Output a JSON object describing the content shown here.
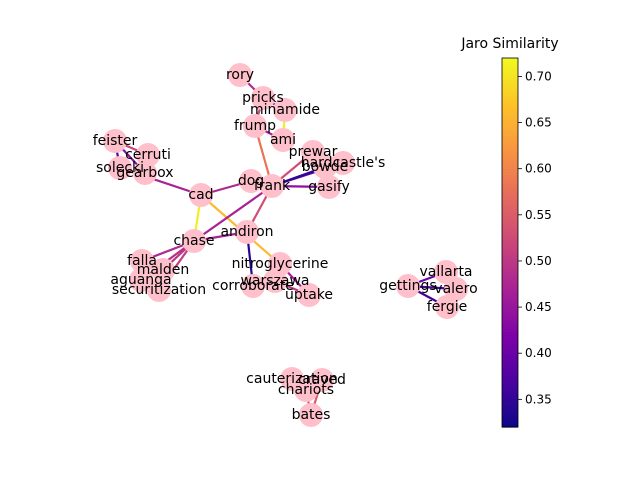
{
  "colorbar": {
    "title": "Jaro Similarity",
    "min": 0.32,
    "max": 0.72,
    "ticks": [
      0.35,
      0.4,
      0.45,
      0.5,
      0.55,
      0.6,
      0.65,
      0.7
    ],
    "tick_labels": [
      "0.35",
      "0.40",
      "0.45",
      "0.50",
      "0.55",
      "0.60",
      "0.65",
      "0.70"
    ],
    "colormap": "plasma"
  },
  "node_color": "#ffc0cb",
  "nodes": [
    {
      "id": "rory",
      "label": "rory"
    },
    {
      "id": "pricks",
      "label": "pricks"
    },
    {
      "id": "minamide",
      "label": "minamide"
    },
    {
      "id": "frump",
      "label": "frump"
    },
    {
      "id": "ami",
      "label": "ami"
    },
    {
      "id": "prewar",
      "label": "prewar"
    },
    {
      "id": "hardcastles",
      "label": "hardcastle's"
    },
    {
      "id": "bowde",
      "label": "bowde"
    },
    {
      "id": "gasify",
      "label": "gasify"
    },
    {
      "id": "dog",
      "label": "dog"
    },
    {
      "id": "frank",
      "label": "frank"
    },
    {
      "id": "feister",
      "label": "feister"
    },
    {
      "id": "cerruti",
      "label": "cerruti"
    },
    {
      "id": "solecki",
      "label": "solecki"
    },
    {
      "id": "gearbox",
      "label": "gearbox"
    },
    {
      "id": "cad",
      "label": "cad"
    },
    {
      "id": "andiron",
      "label": "andiron"
    },
    {
      "id": "chase",
      "label": "chase"
    },
    {
      "id": "falla",
      "label": "falla"
    },
    {
      "id": "malden",
      "label": "malden"
    },
    {
      "id": "aguanga",
      "label": "aguanga"
    },
    {
      "id": "securitization",
      "label": "securitization"
    },
    {
      "id": "nitroglycerine",
      "label": "nitroglycerine"
    },
    {
      "id": "warszawa",
      "label": "warszawa"
    },
    {
      "id": "corroborate",
      "label": "corroborate"
    },
    {
      "id": "uptake",
      "label": "uptake"
    },
    {
      "id": "gettings",
      "label": "gettings"
    },
    {
      "id": "vallarta",
      "label": "vallarta"
    },
    {
      "id": "valero",
      "label": "valero"
    },
    {
      "id": "fergie",
      "label": "fergie"
    },
    {
      "id": "cauterization",
      "label": "cauterization"
    },
    {
      "id": "craved",
      "label": "craved"
    },
    {
      "id": "chariots",
      "label": "chariots"
    },
    {
      "id": "bates",
      "label": "bates"
    }
  ],
  "edges": [
    {
      "source": "rory",
      "target": "pricks",
      "weight": 0.48
    },
    {
      "source": "pricks",
      "target": "minamide",
      "weight": 0.45
    },
    {
      "source": "pricks",
      "target": "frump",
      "weight": 0.52
    },
    {
      "source": "minamide",
      "target": "ami",
      "weight": 0.71
    },
    {
      "source": "frump",
      "target": "ami",
      "weight": 0.47
    },
    {
      "source": "frump",
      "target": "frank",
      "weight": 0.58
    },
    {
      "source": "prewar",
      "target": "frank",
      "weight": 0.53
    },
    {
      "source": "frank",
      "target": "hardcastles",
      "weight": 0.38
    },
    {
      "source": "frank",
      "target": "bowde",
      "weight": 0.35
    },
    {
      "source": "frank",
      "target": "gasify",
      "weight": 0.44
    },
    {
      "source": "dog",
      "target": "frank",
      "weight": 0.47
    },
    {
      "source": "feister",
      "target": "cerruti",
      "weight": 0.52
    },
    {
      "source": "feister",
      "target": "solecki",
      "weight": 0.38
    },
    {
      "source": "feister",
      "target": "gearbox",
      "weight": 0.44
    },
    {
      "source": "cerruti",
      "target": "gearbox",
      "weight": 0.48
    },
    {
      "source": "solecki",
      "target": "cad",
      "weight": 0.47
    },
    {
      "source": "cad",
      "target": "dog",
      "weight": 0.48
    },
    {
      "source": "cad",
      "target": "chase",
      "weight": 0.71
    },
    {
      "source": "cad",
      "target": "nitroglycerine",
      "weight": 0.66
    },
    {
      "source": "andiron",
      "target": "frank",
      "weight": 0.53
    },
    {
      "source": "andiron",
      "target": "chase",
      "weight": 0.47
    },
    {
      "source": "andiron",
      "target": "corroborate",
      "weight": 0.34
    },
    {
      "source": "chase",
      "target": "frank",
      "weight": 0.47
    },
    {
      "source": "chase",
      "target": "falla",
      "weight": 0.48
    },
    {
      "source": "chase",
      "target": "malden",
      "weight": 0.5
    },
    {
      "source": "chase",
      "target": "aguanga",
      "weight": 0.49
    },
    {
      "source": "chase",
      "target": "securitization",
      "weight": 0.51
    },
    {
      "source": "nitroglycerine",
      "target": "warszawa",
      "weight": 0.45
    },
    {
      "source": "warszawa",
      "target": "uptake",
      "weight": 0.5
    },
    {
      "source": "corroborate",
      "target": "warszawa",
      "weight": 0.44
    },
    {
      "source": "nitroglycerine",
      "target": "uptake",
      "weight": 0.47
    },
    {
      "source": "gettings",
      "target": "vallarta",
      "weight": 0.4
    },
    {
      "source": "gettings",
      "target": "valero",
      "weight": 0.37
    },
    {
      "source": "gettings",
      "target": "fergie",
      "weight": 0.36
    },
    {
      "source": "cauterization",
      "target": "craved",
      "weight": 0.57
    },
    {
      "source": "cauterization",
      "target": "chariots",
      "weight": 0.52
    },
    {
      "source": "chariots",
      "target": "bates",
      "weight": 0.54
    },
    {
      "source": "craved",
      "target": "bates",
      "weight": 0.55
    }
  ]
}
